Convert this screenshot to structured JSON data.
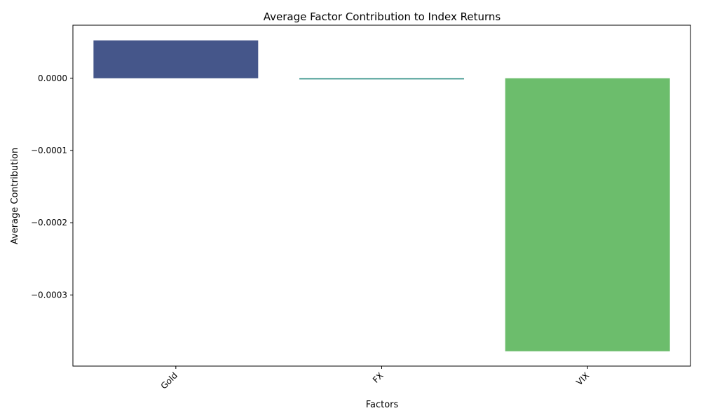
{
  "chart_data": {
    "type": "bar",
    "title": "Average Factor Contribution to Index Returns",
    "xlabel": "Factors",
    "ylabel": "Average Contribution",
    "categories": [
      "Gold",
      "FX",
      "VIX"
    ],
    "values": [
      5.25e-05,
      -1.5e-06,
      -0.000378
    ],
    "colors": [
      "#45568a",
      "#2c8d84",
      "#6cbd6c"
    ],
    "yticks": [
      0.0,
      -0.0001,
      -0.0002,
      -0.0003
    ],
    "ytick_labels": [
      "0.0000",
      "−0.0001",
      "−0.0002",
      "−0.0003"
    ],
    "ylim": [
      -0.0003985,
      7.35e-05
    ],
    "grid": false,
    "legend": "none",
    "xtick_rotation_deg": 45
  }
}
